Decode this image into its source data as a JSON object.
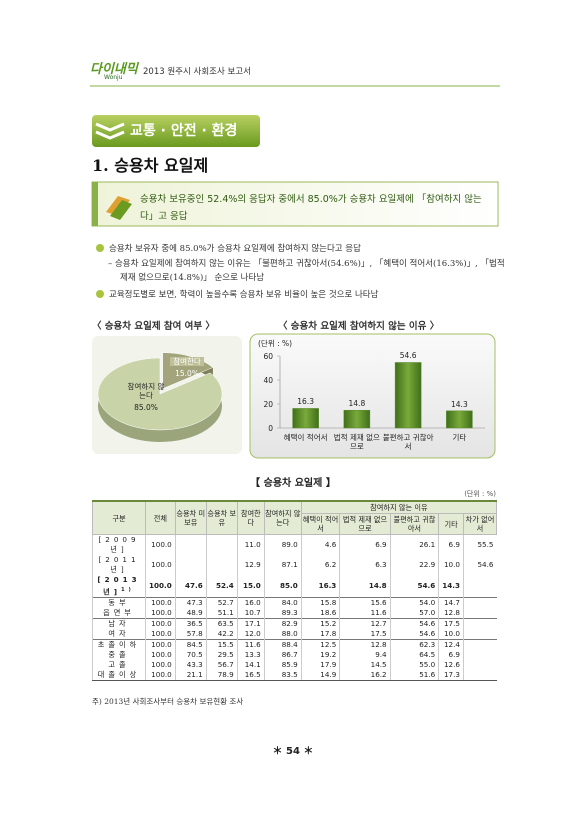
{
  "header": {
    "logo": "다이내믹",
    "logo_sub": "Wonju",
    "title": "2013 원주시 사회조사 보고서"
  },
  "section": "교통 · 안전 · 환경",
  "heading": "1. 승용차 요일제",
  "summary": "승용차 보유중인 52.4%의 응답자 중에서 85.0%가 승용차 요일제에 「참여하지 않는다」고 응답",
  "bullets": [
    {
      "text": "승용차 보유자 중에 85.0%가 승용차 요일제에 참여하지 않는다고 응답",
      "sub": [
        "승용차 요일제에 참여하지 않는 이유는 「불편하고 귀찮아서(54.6%)」, 「혜택이 적어서(16.3%)」, 「법적 제재 없으므로(14.8%)」 순으로 나타남"
      ]
    },
    {
      "text": "교육정도별로 보면, 학력이 높을수록 승용차 보유 비율이 높은 것으로 나타남"
    }
  ],
  "charts": [
    {
      "type": "pie",
      "title": "〈 승용차 요일제 참여 여부 〉",
      "categories": [
        "참여한다",
        "참여하지 않는다"
      ],
      "values": [
        15,
        85
      ],
      "value_labels": [
        "15.0%",
        "85.0%"
      ],
      "colors": [
        "#a3a47c",
        "#c9d3a8"
      ]
    },
    {
      "type": "bar",
      "title": "〈 승용차 요일제 참여하지 않는 이유 〉",
      "unit": "(단위 : %)",
      "categories": [
        "혜택이 적어서",
        "법적 제재 없으므로",
        "불편하고 귀찮아서",
        "기타"
      ],
      "values": [
        16.3,
        14.8,
        54.6,
        14.3
      ],
      "color": "#5a8a2a",
      "ylim": [
        0,
        60
      ],
      "yticks": [
        0,
        20,
        40,
        60
      ],
      "grid": false
    }
  ],
  "table": {
    "title": "【 승용차 요일제 】",
    "unit": "(단위 : %)",
    "headers": {
      "group": "구분",
      "total": "전체",
      "no_car": "승용차 미보유",
      "car": "승용차 보유",
      "join": "참여한다",
      "no_join": "참여하지 않는다",
      "reason_group": "참여하지 않는 이유",
      "reasons": [
        "혜택이 적어서",
        "법적 제재 없으므로",
        "불편하고 귀찮아서",
        "기타",
        "차가 없어서"
      ]
    },
    "rows": [
      {
        "label": "[2009년]",
        "cells": [
          "100.0",
          null,
          null,
          "11.0",
          "89.0",
          "4.6",
          "6.9",
          "26.1",
          "6.9",
          "55.5"
        ]
      },
      {
        "label": "[2011년]",
        "cells": [
          "100.0",
          null,
          null,
          "12.9",
          "87.1",
          "6.2",
          "6.3",
          "22.9",
          "10.0",
          "54.6"
        ]
      },
      {
        "label": "[2013년]",
        "note": "1)",
        "cells": [
          "100.0",
          "47.6",
          "52.4",
          "15.0",
          "85.0",
          "16.3",
          "14.8",
          "54.6",
          "14.3",
          null
        ]
      },
      {
        "label": "동부",
        "cells": [
          "100.0",
          "47.3",
          "52.7",
          "16.0",
          "84.0",
          "15.8",
          "15.6",
          "54.0",
          "14.7",
          null
        ]
      },
      {
        "label": "읍면부",
        "cells": [
          "100.0",
          "48.9",
          "51.1",
          "10.7",
          "89.3",
          "18.6",
          "11.6",
          "57.0",
          "12.8",
          null
        ]
      },
      {
        "label": "남자",
        "cells": [
          "100.0",
          "36.5",
          "63.5",
          "17.1",
          "82.9",
          "15.2",
          "12.7",
          "54.6",
          "17.5",
          null
        ]
      },
      {
        "label": "여자",
        "cells": [
          "100.0",
          "57.8",
          "42.2",
          "12.0",
          "88.0",
          "17.8",
          "17.5",
          "54.6",
          "10.0",
          null
        ]
      },
      {
        "label": "초졸이하",
        "cells": [
          "100.0",
          "84.5",
          "15.5",
          "11.6",
          "88.4",
          "12.5",
          "12.8",
          "62.3",
          "12.4",
          null
        ]
      },
      {
        "label": "중졸",
        "cells": [
          "100.0",
          "70.5",
          "29.5",
          "13.3",
          "86.7",
          "19.2",
          "9.4",
          "64.5",
          "6.9",
          null
        ]
      },
      {
        "label": "고졸",
        "cells": [
          "100.0",
          "43.3",
          "56.7",
          "14.1",
          "85.9",
          "17.9",
          "14.5",
          "55.0",
          "12.6",
          null
        ]
      },
      {
        "label": "대졸이상",
        "cells": [
          "100.0",
          "21.1",
          "78.9",
          "16.5",
          "83.5",
          "14.9",
          "16.2",
          "51.6",
          "17.3",
          null
        ]
      }
    ]
  },
  "footnote": "주) 2013년 사회조사부터 승용차 보유현황 조사",
  "page": "54"
}
